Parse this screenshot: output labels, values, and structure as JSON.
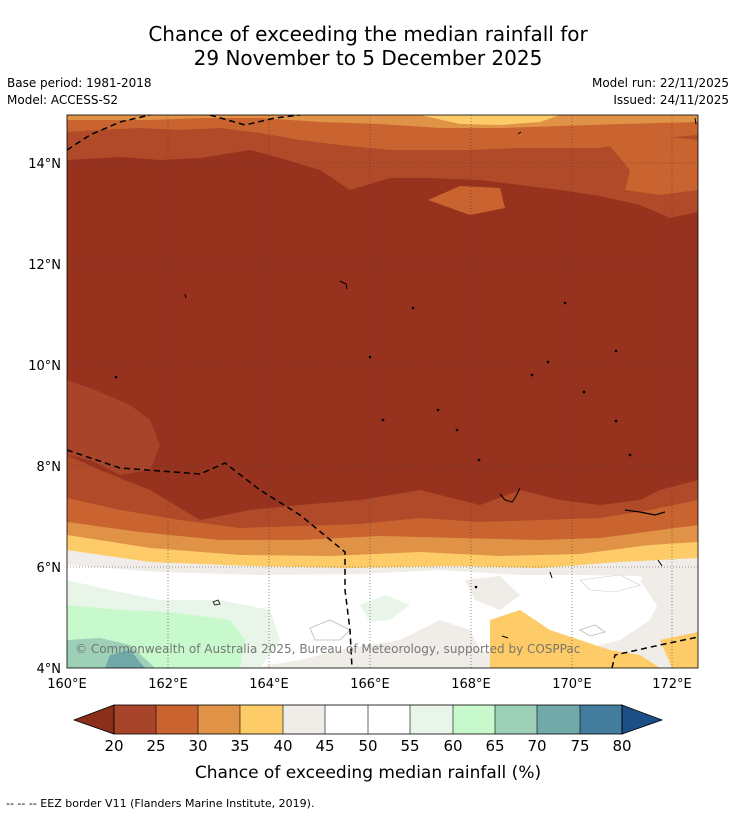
{
  "title": {
    "line1": "Chance of exceeding the median rainfall for",
    "line2": "29 November to 5 December 2025"
  },
  "meta": {
    "base_period": "Base period: 1981-2018",
    "model": "Model: ACCESS-S2",
    "model_run": "Model run: 22/11/2025",
    "issued": "Issued: 24/11/2025"
  },
  "map": {
    "lat_labels": [
      "14°N",
      "12°N",
      "10°N",
      "8°N",
      "6°N",
      "4°N"
    ],
    "lon_labels": [
      "160°E",
      "162°E",
      "164°E",
      "166°E",
      "168°E",
      "170°E",
      "172°E"
    ],
    "lon_range": [
      160,
      172.5
    ],
    "lat_range": [
      4,
      15
    ],
    "copyright": "© Commonwealth of Australia 2025, Bureau of Meteorology, supported by COSPPac"
  },
  "legend": {
    "ticks": [
      "20",
      "25",
      "30",
      "35",
      "40",
      "45",
      "50",
      "55",
      "60",
      "65",
      "70",
      "75",
      "80"
    ],
    "colors": {
      "below20": "#8b2f1a",
      "c20_25": "#a8442a",
      "c25_30": "#c9632f",
      "c30_35": "#e09347",
      "c35_40": "#fdcc68",
      "c40_45": "#f0ede8",
      "c45_50": "#ffffff",
      "c50_55": "#ffffff",
      "c55_60": "#e8f5e8",
      "c60_65": "#c8f9cc",
      "c65_70": "#9ed0b8",
      "c70_75": "#72a8a8",
      "c75_80": "#437c9c",
      "above80": "#1b4f86"
    },
    "label": "Chance of exceeding median rainfall (%)"
  },
  "footer": "--  --  -- EEZ border V11 (Flanders Marine Institute, 2019)."
}
